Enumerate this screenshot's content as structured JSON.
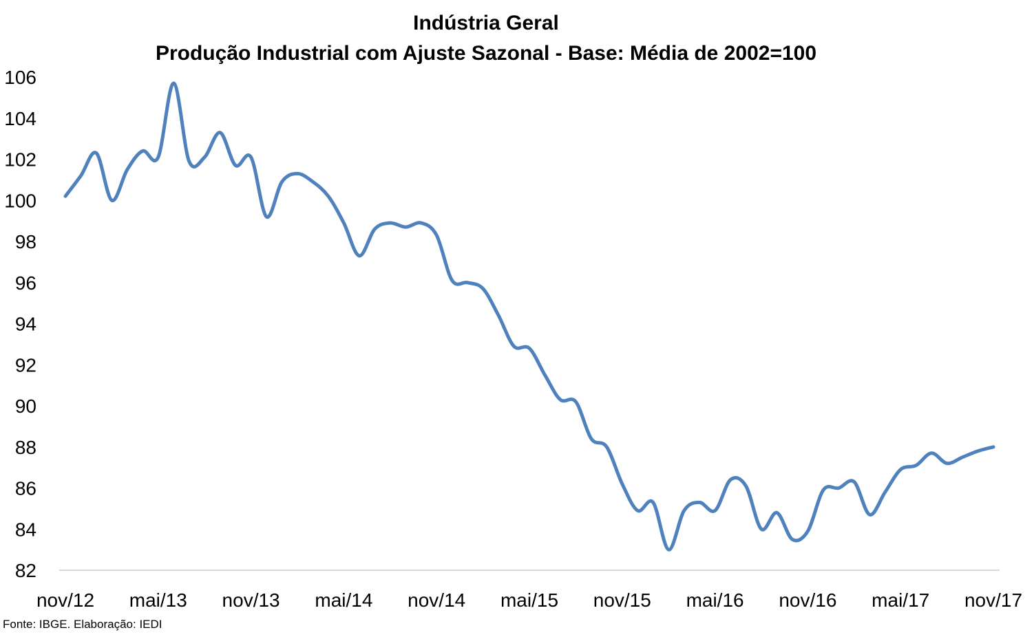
{
  "title": "Indústria Geral",
  "subtitle": "Produção Industrial com Ajuste Sazonal - Base: Média de 2002=100",
  "source": "Fonte: IBGE. Elaboração: IEDI",
  "colors": {
    "line": "#4F81BD",
    "axis": "#D9D9D9",
    "text": "#000000"
  },
  "chart_data": {
    "type": "line",
    "title": "Indústria Geral",
    "subtitle": "Produção Industrial com Ajuste Sazonal - Base: Média de 2002=100",
    "xlabel": "",
    "ylabel": "",
    "ylim": [
      82,
      106
    ],
    "yticks": [
      82,
      84,
      86,
      88,
      90,
      92,
      94,
      96,
      98,
      100,
      102,
      104,
      106
    ],
    "xtick_labels": [
      "nov/12",
      "mai/13",
      "nov/13",
      "mai/14",
      "nov/14",
      "mai/15",
      "nov/15",
      "mai/16",
      "nov/16",
      "mai/17",
      "nov/17"
    ],
    "grid": false,
    "legend": "none",
    "series": [
      {
        "values": [
          100.2,
          101.2,
          102.3,
          100.0,
          101.5,
          102.4,
          102.1,
          105.7,
          101.9,
          102.1,
          103.3,
          101.7,
          102.1,
          99.2,
          100.9,
          101.3,
          100.9,
          100.2,
          98.9,
          97.3,
          98.6,
          98.9,
          98.7,
          98.9,
          98.3,
          96.1,
          96.0,
          95.7,
          94.4,
          92.9,
          92.8,
          91.5,
          90.3,
          90.2,
          88.4,
          88.0,
          86.2,
          84.9,
          85.3,
          83.0,
          84.9,
          85.3,
          84.9,
          86.4,
          86.1,
          84.0,
          84.8,
          83.5,
          83.9,
          85.9,
          86.0,
          86.3,
          84.7,
          85.8,
          86.9,
          87.1,
          87.7,
          87.2,
          87.5,
          87.8,
          88.0
        ]
      }
    ]
  }
}
